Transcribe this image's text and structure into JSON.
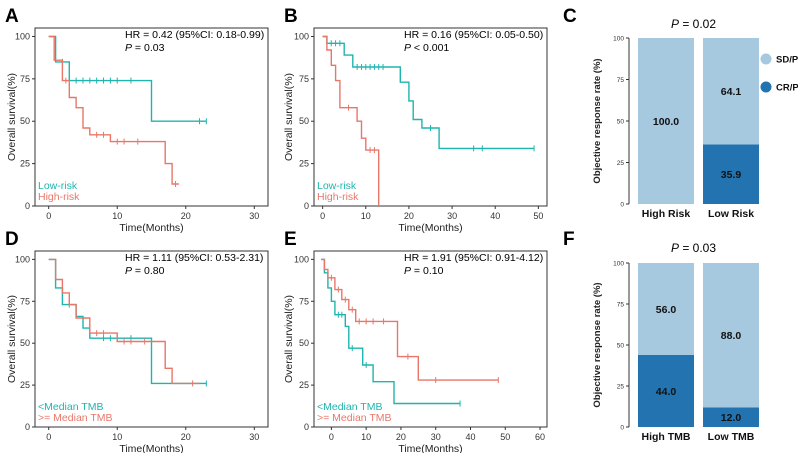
{
  "colors": {
    "teal": "#1FB5AE",
    "salmon": "#E8776A",
    "light_blue": "#A6C9E0",
    "dark_blue": "#2273B0",
    "axis": "#333333"
  },
  "chart_data": [
    {
      "id": "A",
      "type": "line",
      "subtype": "kaplan-meier",
      "panel_label": "A",
      "xlabel": "Time(Months)",
      "ylabel": "Overall survival(%)",
      "xlim": [
        -2,
        32
      ],
      "ylim": [
        0,
        105
      ],
      "xticks": [
        0,
        10,
        20,
        30
      ],
      "yticks": [
        0,
        25,
        50,
        75,
        100
      ],
      "stat_line1": "HR = 0.42 (95%CI: 0.18-0.99)",
      "stat_p_label": "P",
      "stat_p_rest": " = 0.03",
      "series": [
        {
          "name": "Low-risk",
          "color": "#1FB5AE",
          "steps": [
            [
              0,
              100
            ],
            [
              1,
              100
            ],
            [
              1,
              85
            ],
            [
              3,
              85
            ],
            [
              3,
              74
            ],
            [
              15,
              74
            ],
            [
              15,
              50
            ],
            [
              23,
              50
            ]
          ],
          "censors": [
            [
              2,
              85
            ],
            [
              4,
              74
            ],
            [
              5,
              74
            ],
            [
              6,
              74
            ],
            [
              7,
              74
            ],
            [
              8,
              74
            ],
            [
              9,
              74
            ],
            [
              10,
              74
            ],
            [
              12,
              74
            ],
            [
              22,
              50
            ],
            [
              23,
              50
            ]
          ]
        },
        {
          "name": "High-risk",
          "color": "#E8776A",
          "steps": [
            [
              0,
              100
            ],
            [
              0.8,
              100
            ],
            [
              0.8,
              86
            ],
            [
              2,
              86
            ],
            [
              2,
              74
            ],
            [
              3,
              74
            ],
            [
              3,
              64
            ],
            [
              4,
              64
            ],
            [
              4,
              58
            ],
            [
              5,
              58
            ],
            [
              5,
              46
            ],
            [
              6,
              46
            ],
            [
              6,
              42
            ],
            [
              9,
              42
            ],
            [
              9,
              38
            ],
            [
              17,
              38
            ],
            [
              17,
              25
            ],
            [
              18,
              25
            ],
            [
              18,
              13
            ],
            [
              19,
              13
            ]
          ],
          "censors": [
            [
              2.5,
              74
            ],
            [
              7,
              42
            ],
            [
              8,
              42
            ],
            [
              10,
              38
            ],
            [
              11,
              38
            ],
            [
              13,
              38
            ],
            [
              18.5,
              13
            ]
          ]
        }
      ]
    },
    {
      "id": "B",
      "type": "line",
      "subtype": "kaplan-meier",
      "panel_label": "B",
      "xlabel": "Time(Months)",
      "ylabel": "Overall survival(%)",
      "xlim": [
        -2,
        52
      ],
      "ylim": [
        0,
        105
      ],
      "xticks": [
        0,
        10,
        20,
        30,
        40,
        50
      ],
      "yticks": [
        0,
        25,
        50,
        75,
        100
      ],
      "stat_line1": "HR = 0.16 (95%CI: 0.05-0.50)",
      "stat_p_label": "P",
      "stat_p_rest": " < 0.001",
      "series": [
        {
          "name": "Low-risk",
          "color": "#1FB5AE",
          "steps": [
            [
              0,
              100
            ],
            [
              1,
              100
            ],
            [
              1,
              96
            ],
            [
              5,
              96
            ],
            [
              5,
              89
            ],
            [
              7,
              89
            ],
            [
              7,
              82
            ],
            [
              18,
              82
            ],
            [
              18,
              73
            ],
            [
              20,
              73
            ],
            [
              20,
              62
            ],
            [
              21,
              62
            ],
            [
              21,
              51
            ],
            [
              23,
              51
            ],
            [
              23,
              46
            ],
            [
              27,
              46
            ],
            [
              27,
              34
            ],
            [
              49,
              34
            ]
          ],
          "censors": [
            [
              2,
              96
            ],
            [
              3,
              96
            ],
            [
              4,
              96
            ],
            [
              8,
              82
            ],
            [
              9,
              82
            ],
            [
              10,
              82
            ],
            [
              11,
              82
            ],
            [
              12,
              82
            ],
            [
              13,
              82
            ],
            [
              14,
              82
            ],
            [
              25,
              46
            ],
            [
              35,
              34
            ],
            [
              37,
              34
            ],
            [
              49,
              34
            ]
          ]
        },
        {
          "name": "High-risk",
          "color": "#E8776A",
          "steps": [
            [
              0,
              100
            ],
            [
              1,
              100
            ],
            [
              1,
              92
            ],
            [
              2,
              92
            ],
            [
              2,
              83
            ],
            [
              3,
              83
            ],
            [
              3,
              74
            ],
            [
              4,
              74
            ],
            [
              4,
              58
            ],
            [
              8,
              58
            ],
            [
              8,
              50
            ],
            [
              9,
              50
            ],
            [
              9,
              40
            ],
            [
              10,
              40
            ],
            [
              10,
              33
            ],
            [
              13,
              33
            ],
            [
              13,
              0
            ]
          ],
          "censors": [
            [
              6,
              58
            ],
            [
              11,
              33
            ],
            [
              12,
              33
            ]
          ]
        }
      ]
    },
    {
      "id": "C",
      "type": "bar",
      "subtype": "stacked-100",
      "panel_label": "C",
      "title_p_label": "P",
      "title_p_rest": " = 0.02",
      "ylabel": "Objective response rate (%)",
      "categories": [
        "High Risk",
        "Low Risk"
      ],
      "ylim": [
        0,
        100
      ],
      "yticks": [
        0,
        25,
        50,
        75,
        100
      ],
      "series": [
        {
          "name": "CR/PR",
          "color": "#2273B0",
          "values": [
            0,
            35.9
          ],
          "labels": [
            "",
            "35.9"
          ]
        },
        {
          "name": "SD/PD",
          "color": "#A6C9E0",
          "values": [
            100,
            64.1
          ],
          "labels": [
            "100.0",
            "64.1"
          ]
        }
      ],
      "legend": [
        "SD/PD",
        "CR/PR"
      ]
    },
    {
      "id": "D",
      "type": "line",
      "subtype": "kaplan-meier",
      "panel_label": "D",
      "xlabel": "Time(Months)",
      "ylabel": "Overall survival(%)",
      "xlim": [
        -2,
        32
      ],
      "ylim": [
        0,
        105
      ],
      "xticks": [
        0,
        10,
        20,
        30
      ],
      "yticks": [
        0,
        25,
        50,
        75,
        100
      ],
      "stat_line1": "HR = 1.11 (95%CI: 0.53-2.31)",
      "stat_p_label": "P",
      "stat_p_rest": " = 0.80",
      "series": [
        {
          "name": "<Median TMB",
          "color": "#1FB5AE",
          "steps": [
            [
              0,
              100
            ],
            [
              1,
              100
            ],
            [
              1,
              83
            ],
            [
              2,
              83
            ],
            [
              2,
              73
            ],
            [
              4,
              73
            ],
            [
              4,
              66
            ],
            [
              5,
              66
            ],
            [
              5,
              59
            ],
            [
              6,
              59
            ],
            [
              6,
              53
            ],
            [
              15,
              53
            ],
            [
              15,
              26
            ],
            [
              23,
              26
            ]
          ],
          "censors": [
            [
              3,
              73
            ],
            [
              8,
              53
            ],
            [
              9,
              53
            ],
            [
              10,
              53
            ],
            [
              12,
              53
            ],
            [
              23,
              26
            ]
          ]
        },
        {
          "name": ">= Median TMB",
          "color": "#E8776A",
          "steps": [
            [
              0,
              100
            ],
            [
              1,
              100
            ],
            [
              1,
              88
            ],
            [
              2,
              88
            ],
            [
              2,
              80
            ],
            [
              3,
              80
            ],
            [
              3,
              73
            ],
            [
              4,
              73
            ],
            [
              4,
              65
            ],
            [
              6,
              65
            ],
            [
              6,
              56
            ],
            [
              10,
              56
            ],
            [
              10,
              51
            ],
            [
              17,
              51
            ],
            [
              17,
              35
            ],
            [
              18,
              35
            ],
            [
              18,
              26
            ],
            [
              22,
              26
            ]
          ],
          "censors": [
            [
              7,
              56
            ],
            [
              8,
              56
            ],
            [
              11,
              51
            ],
            [
              12,
              51
            ],
            [
              14,
              51
            ],
            [
              21,
              26
            ]
          ]
        }
      ]
    },
    {
      "id": "E",
      "type": "line",
      "subtype": "kaplan-meier",
      "panel_label": "E",
      "xlabel": "Time(Months)",
      "ylabel": "Overall survival(%)",
      "xlim": [
        -5,
        62
      ],
      "ylim": [
        0,
        105
      ],
      "xticks": [
        0,
        10,
        20,
        30,
        40,
        50,
        60
      ],
      "yticks": [
        0,
        25,
        50,
        75,
        100
      ],
      "stat_line1": "HR = 1.91 (95%CI: 0.91-4.12)",
      "stat_p_label": "P",
      "stat_p_rest": " = 0.10",
      "series": [
        {
          "name": "<Median TMB",
          "color": "#1FB5AE",
          "steps": [
            [
              -3,
              100
            ],
            [
              -2,
              100
            ],
            [
              -2,
              92
            ],
            [
              -1,
              92
            ],
            [
              -1,
              83
            ],
            [
              0,
              83
            ],
            [
              0,
              75
            ],
            [
              1,
              75
            ],
            [
              1,
              67
            ],
            [
              4,
              67
            ],
            [
              4,
              60
            ],
            [
              5,
              60
            ],
            [
              5,
              47
            ],
            [
              9,
              47
            ],
            [
              9,
              37
            ],
            [
              12,
              37
            ],
            [
              12,
              27
            ],
            [
              18,
              27
            ],
            [
              18,
              14
            ],
            [
              37,
              14
            ]
          ],
          "censors": [
            [
              2,
              67
            ],
            [
              3,
              67
            ],
            [
              6,
              47
            ],
            [
              10,
              37
            ],
            [
              37,
              14
            ]
          ]
        },
        {
          "name": ">= Median TMB",
          "color": "#E8776A",
          "steps": [
            [
              -3,
              100
            ],
            [
              -2,
              100
            ],
            [
              -2,
              94
            ],
            [
              -1,
              94
            ],
            [
              -1,
              89
            ],
            [
              1,
              89
            ],
            [
              1,
              82
            ],
            [
              3,
              82
            ],
            [
              3,
              76
            ],
            [
              5,
              76
            ],
            [
              5,
              70
            ],
            [
              7,
              70
            ],
            [
              7,
              63
            ],
            [
              19,
              63
            ],
            [
              19,
              42
            ],
            [
              25,
              42
            ],
            [
              25,
              28
            ],
            [
              48,
              28
            ]
          ],
          "censors": [
            [
              0,
              89
            ],
            [
              2,
              82
            ],
            [
              4,
              76
            ],
            [
              6,
              70
            ],
            [
              8,
              63
            ],
            [
              10,
              63
            ],
            [
              12,
              63
            ],
            [
              15,
              63
            ],
            [
              22,
              42
            ],
            [
              30,
              28
            ],
            [
              48,
              28
            ]
          ]
        }
      ]
    },
    {
      "id": "F",
      "type": "bar",
      "subtype": "stacked-100",
      "panel_label": "F",
      "title_p_label": "P",
      "title_p_rest": " = 0.03",
      "ylabel": "Objective response rate (%)",
      "categories": [
        "High TMB",
        "Low TMB"
      ],
      "ylim": [
        0,
        100
      ],
      "yticks": [
        0,
        25,
        50,
        75,
        100
      ],
      "series": [
        {
          "name": "CR/PR",
          "color": "#2273B0",
          "values": [
            44.0,
            12.0
          ],
          "labels": [
            "44.0",
            "12.0"
          ]
        },
        {
          "name": "SD/PD",
          "color": "#A6C9E0",
          "values": [
            56.0,
            88.0
          ],
          "labels": [
            "56.0",
            "88.0"
          ]
        }
      ],
      "legend": []
    }
  ]
}
